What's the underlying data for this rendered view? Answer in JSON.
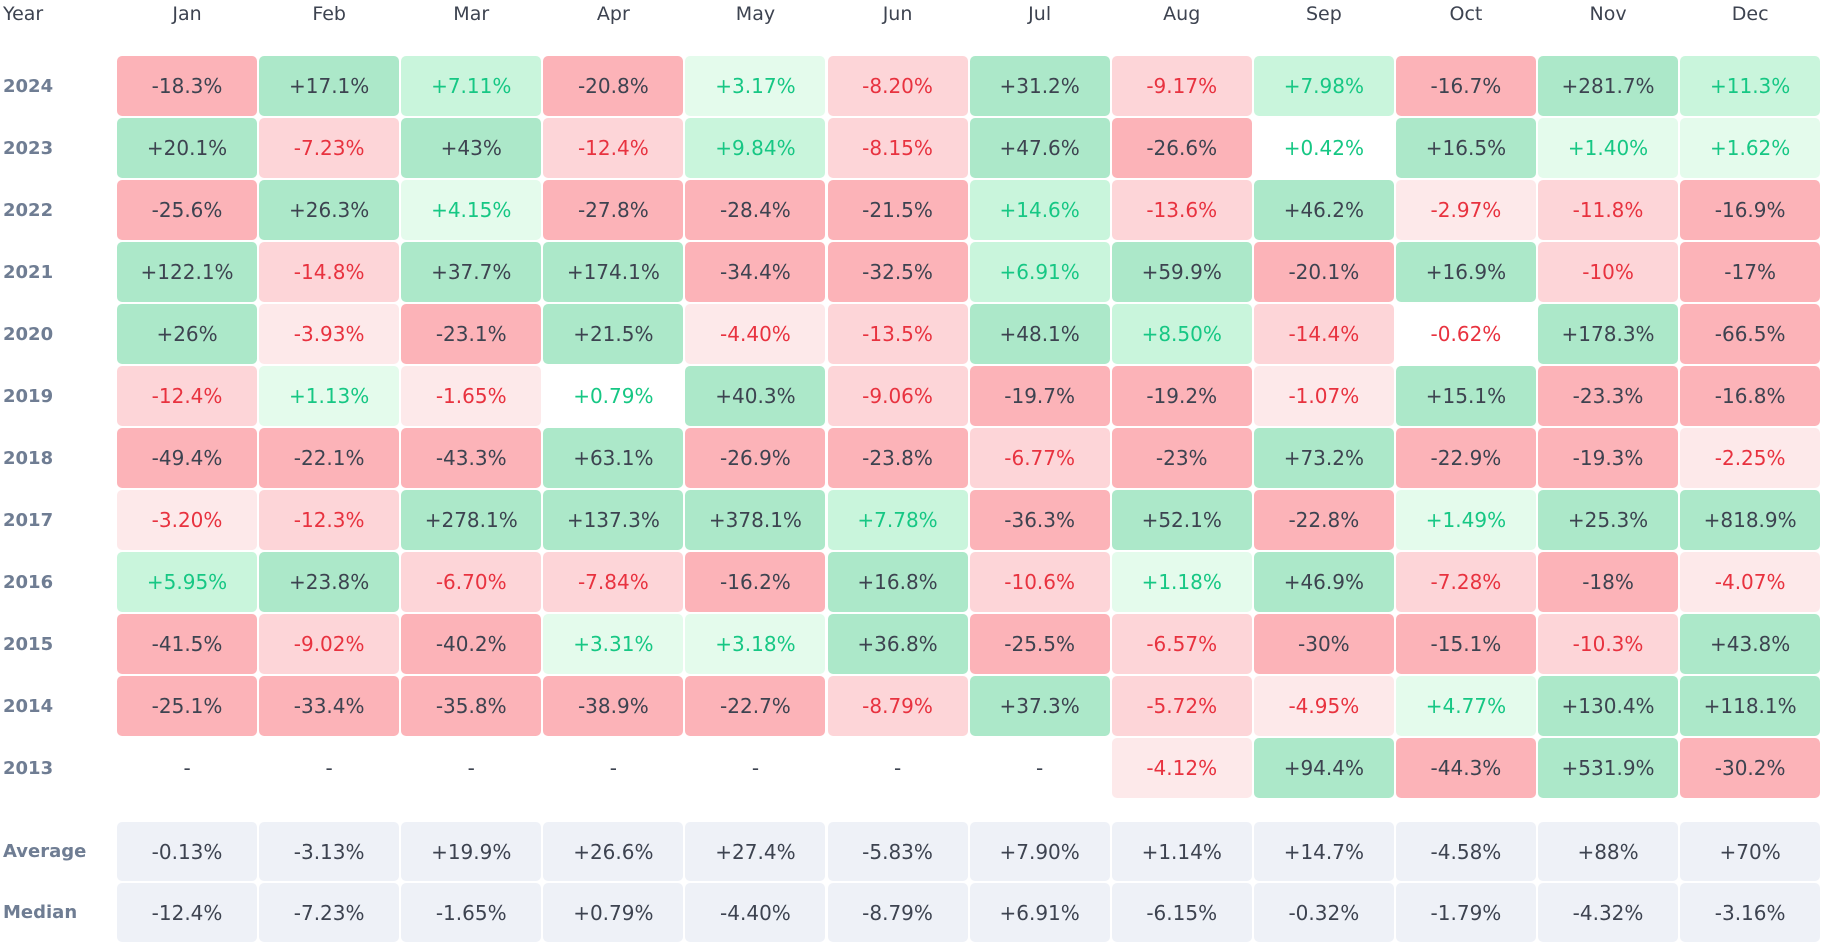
{
  "header": {
    "year": "Year",
    "months": [
      "Jan",
      "Feb",
      "Mar",
      "Apr",
      "May",
      "Jun",
      "Jul",
      "Aug",
      "Sep",
      "Oct",
      "Nov",
      "Dec"
    ]
  },
  "rows": [
    {
      "year": "2024",
      "cells": [
        "-18.3%",
        "+17.1%",
        "+7.11%",
        "-20.8%",
        "+3.17%",
        "-8.20%",
        "+31.2%",
        "-9.17%",
        "+7.98%",
        "-16.7%",
        "+281.7%",
        "+11.3%"
      ]
    },
    {
      "year": "2023",
      "cells": [
        "+20.1%",
        "-7.23%",
        "+43%",
        "-12.4%",
        "+9.84%",
        "-8.15%",
        "+47.6%",
        "-26.6%",
        "+0.42%",
        "+16.5%",
        "+1.40%",
        "+1.62%"
      ]
    },
    {
      "year": "2022",
      "cells": [
        "-25.6%",
        "+26.3%",
        "+4.15%",
        "-27.8%",
        "-28.4%",
        "-21.5%",
        "+14.6%",
        "-13.6%",
        "+46.2%",
        "-2.97%",
        "-11.8%",
        "-16.9%"
      ]
    },
    {
      "year": "2021",
      "cells": [
        "+122.1%",
        "-14.8%",
        "+37.7%",
        "+174.1%",
        "-34.4%",
        "-32.5%",
        "+6.91%",
        "+59.9%",
        "-20.1%",
        "+16.9%",
        "-10%",
        "-17%"
      ]
    },
    {
      "year": "2020",
      "cells": [
        "+26%",
        "-3.93%",
        "-23.1%",
        "+21.5%",
        "-4.40%",
        "-13.5%",
        "+48.1%",
        "+8.50%",
        "-14.4%",
        "-0.62%",
        "+178.3%",
        "-66.5%"
      ]
    },
    {
      "year": "2019",
      "cells": [
        "-12.4%",
        "+1.13%",
        "-1.65%",
        "+0.79%",
        "+40.3%",
        "-9.06%",
        "-19.7%",
        "-19.2%",
        "-1.07%",
        "+15.1%",
        "-23.3%",
        "-16.8%"
      ]
    },
    {
      "year": "2018",
      "cells": [
        "-49.4%",
        "-22.1%",
        "-43.3%",
        "+63.1%",
        "-26.9%",
        "-23.8%",
        "-6.77%",
        "-23%",
        "+73.2%",
        "-22.9%",
        "-19.3%",
        "-2.25%"
      ]
    },
    {
      "year": "2017",
      "cells": [
        "-3.20%",
        "-12.3%",
        "+278.1%",
        "+137.3%",
        "+378.1%",
        "+7.78%",
        "-36.3%",
        "+52.1%",
        "-22.8%",
        "+1.49%",
        "+25.3%",
        "+818.9%"
      ]
    },
    {
      "year": "2016",
      "cells": [
        "+5.95%",
        "+23.8%",
        "-6.70%",
        "-7.84%",
        "-16.2%",
        "+16.8%",
        "-10.6%",
        "+1.18%",
        "+46.9%",
        "-7.28%",
        "-18%",
        "-4.07%"
      ]
    },
    {
      "year": "2015",
      "cells": [
        "-41.5%",
        "-9.02%",
        "-40.2%",
        "+3.31%",
        "+3.18%",
        "+36.8%",
        "-25.5%",
        "-6.57%",
        "-30%",
        "-15.1%",
        "-10.3%",
        "+43.8%"
      ]
    },
    {
      "year": "2014",
      "cells": [
        "-25.1%",
        "-33.4%",
        "-35.8%",
        "-38.9%",
        "-22.7%",
        "-8.79%",
        "+37.3%",
        "-5.72%",
        "-4.95%",
        "+4.77%",
        "+130.4%",
        "+118.1%"
      ]
    },
    {
      "year": "2013",
      "cells": [
        "-",
        "-",
        "-",
        "-",
        "-",
        "-",
        "-",
        "-4.12%",
        "+94.4%",
        "-44.3%",
        "+531.9%",
        "-30.2%"
      ]
    }
  ],
  "summary": [
    {
      "label": "Average",
      "cells": [
        "-0.13%",
        "-3.13%",
        "+19.9%",
        "+26.6%",
        "+27.4%",
        "-5.83%",
        "+7.90%",
        "+1.14%",
        "+14.7%",
        "-4.58%",
        "+88%",
        "+70%"
      ]
    },
    {
      "label": "Median",
      "cells": [
        "-12.4%",
        "-7.23%",
        "-1.65%",
        "+0.79%",
        "-4.40%",
        "-8.79%",
        "+6.91%",
        "-6.15%",
        "-0.32%",
        "-1.79%",
        "-4.32%",
        "-3.16%"
      ]
    }
  ]
}
